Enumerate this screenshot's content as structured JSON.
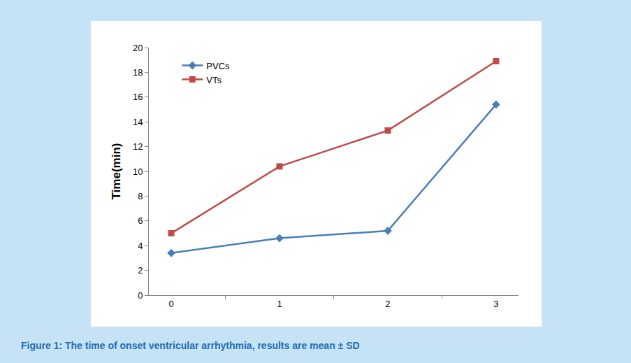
{
  "chart_data": {
    "type": "line",
    "title": "Figure 1: The time of onset ventricular arrhythmia, results are mean ± SD",
    "y_label": "Time(min)",
    "categories": [
      "0",
      "1",
      "2",
      "3"
    ],
    "series": [
      {
        "name": "PVCs",
        "color": "#4a7ebb",
        "marker": "diamond",
        "values": [
          3.4,
          4.6,
          5.2,
          15.4
        ]
      },
      {
        "name": "VTs",
        "color": "#be4b48",
        "marker": "square",
        "values": [
          5.0,
          10.4,
          13.3,
          18.9
        ]
      }
    ],
    "ylim": [
      0,
      20
    ],
    "yticks": [
      0,
      2,
      4,
      6,
      8,
      10,
      12,
      14,
      16,
      18,
      20
    ],
    "grid": false,
    "legend": "upper left"
  }
}
